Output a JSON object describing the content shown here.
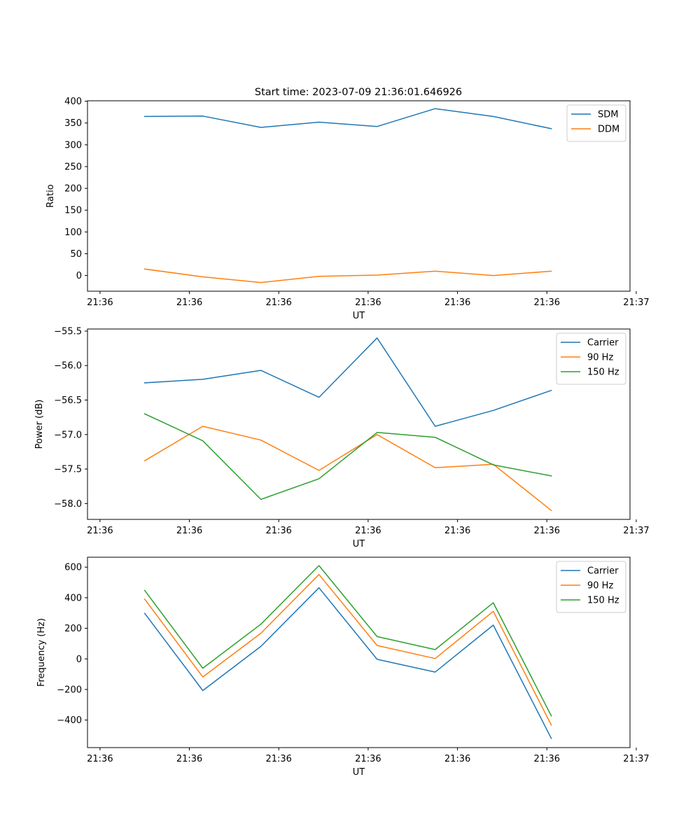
{
  "title": "Start time: 2023-07-09 21:36:01.646926",
  "colors": {
    "blue": "#1f77b4",
    "orange": "#ff7f0e",
    "green": "#2ca02c"
  },
  "x_tick_labels": [
    "21:36",
    "21:36",
    "21:36",
    "21:36",
    "21:36",
    "21:36",
    "21:37"
  ],
  "chart_data": [
    {
      "type": "line",
      "title": "Start time: 2023-07-09 21:36:01.646926",
      "xlabel": "UT",
      "ylabel": "Ratio",
      "x": [
        0.5,
        1.15,
        1.8,
        2.45,
        3.1,
        3.75,
        4.4,
        5.05
      ],
      "xlim": [
        -0.14,
        5.93
      ],
      "x_ticks": [
        0,
        1,
        2,
        3,
        4,
        5,
        6
      ],
      "x_tick_labels": [
        "21:36",
        "21:36",
        "21:36",
        "21:36",
        "21:36",
        "21:36",
        "21:37"
      ],
      "ylim": [
        -36,
        401
      ],
      "y_ticks": [
        0,
        50,
        100,
        150,
        200,
        250,
        300,
        350,
        400
      ],
      "y_tick_labels": [
        "0",
        "50",
        "100",
        "150",
        "200",
        "250",
        "300",
        "350",
        "400"
      ],
      "legend": "top-right",
      "series": [
        {
          "name": "SDM",
          "color": "#1f77b4",
          "values": [
            365,
            366,
            340,
            352,
            342,
            383,
            365,
            337
          ]
        },
        {
          "name": "DDM",
          "color": "#ff7f0e",
          "values": [
            15,
            -3,
            -16,
            -2,
            1,
            10,
            0,
            10
          ]
        }
      ]
    },
    {
      "type": "line",
      "xlabel": "UT",
      "ylabel": "Power (dB)",
      "x": [
        0.5,
        1.15,
        1.8,
        2.45,
        3.1,
        3.75,
        4.4,
        5.05
      ],
      "xlim": [
        -0.14,
        5.93
      ],
      "x_ticks": [
        0,
        1,
        2,
        3,
        4,
        5,
        6
      ],
      "x_tick_labels": [
        "21:36",
        "21:36",
        "21:36",
        "21:36",
        "21:36",
        "21:36",
        "21:37"
      ],
      "ylim": [
        -58.23,
        -55.47
      ],
      "y_ticks": [
        -58.0,
        -57.5,
        -57.0,
        -56.5,
        -56.0,
        -55.5
      ],
      "y_tick_labels": [
        "−58.0",
        "−57.5",
        "−57.0",
        "−56.5",
        "−56.0",
        "−55.5"
      ],
      "legend": "top-right",
      "series": [
        {
          "name": "Carrier",
          "color": "#1f77b4",
          "values": [
            -56.25,
            -56.2,
            -56.07,
            -56.46,
            -55.6,
            -56.88,
            -56.65,
            -56.36
          ]
        },
        {
          "name": "90 Hz",
          "color": "#ff7f0e",
          "values": [
            -57.38,
            -56.88,
            -57.08,
            -57.52,
            -57.0,
            -57.48,
            -57.43,
            -58.1
          ]
        },
        {
          "name": "150 Hz",
          "color": "#2ca02c",
          "values": [
            -56.7,
            -57.09,
            -57.94,
            -57.64,
            -56.97,
            -57.04,
            -57.44,
            -57.6
          ]
        }
      ]
    },
    {
      "type": "line",
      "xlabel": "UT",
      "ylabel": "Frequency (Hz)",
      "x": [
        0.5,
        1.15,
        1.8,
        2.45,
        3.1,
        3.75,
        4.4,
        5.05
      ],
      "xlim": [
        -0.14,
        5.93
      ],
      "x_ticks": [
        0,
        1,
        2,
        3,
        4,
        5,
        6
      ],
      "x_tick_labels": [
        "21:36",
        "21:36",
        "21:36",
        "21:36",
        "21:36",
        "21:36",
        "21:37"
      ],
      "ylim": [
        -580,
        665
      ],
      "y_ticks": [
        -400,
        -200,
        0,
        200,
        400,
        600
      ],
      "y_tick_labels": [
        "−400",
        "−200",
        "0",
        "200",
        "400",
        "600"
      ],
      "legend": "top-right",
      "series": [
        {
          "name": "Carrier",
          "color": "#1f77b4",
          "values": [
            298,
            -207,
            82,
            465,
            -3,
            -86,
            221,
            -520
          ]
        },
        {
          "name": "90 Hz",
          "color": "#ff7f0e",
          "values": [
            391,
            -118,
            168,
            552,
            88,
            2,
            311,
            -433
          ]
        },
        {
          "name": "150 Hz",
          "color": "#2ca02c",
          "values": [
            448,
            -61,
            227,
            610,
            146,
            61,
            367,
            -373
          ]
        }
      ]
    }
  ]
}
